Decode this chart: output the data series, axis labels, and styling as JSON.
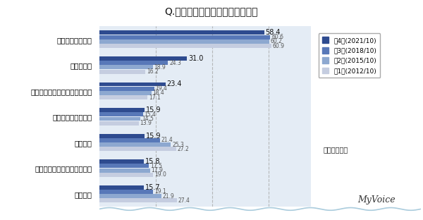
{
  "title": "Q.自分の靴をどこで買いますか？",
  "categories": [
    "靴専門チェーン店",
    "ネット通販",
    "ショッピングセンター・モール",
    "アウトレットモール",
    "デパート",
    "靴専門店（チェーン店以外）",
    "スーパー"
  ],
  "series_order": [
    "第4回(2021/10)",
    "第3回(2018/10)",
    "第2回(2015/10)",
    "第1回(2012/10)"
  ],
  "series": {
    "第4回(2021/10)": [
      58.4,
      31.0,
      23.4,
      15.9,
      15.9,
      15.8,
      15.7
    ],
    "第3回(2018/10)": [
      60.6,
      24.3,
      19.4,
      15.4,
      21.4,
      17.5,
      19.1
    ],
    "第2回(2015/10)": [
      60.2,
      18.9,
      18.4,
      14.5,
      25.3,
      17.9,
      21.9
    ],
    "第1回(2012/10)": [
      60.9,
      16.2,
      17.1,
      13.9,
      27.2,
      19.0,
      27.4
    ]
  },
  "colors": {
    "第4回(2021/10)": "#2E4B8F",
    "第3回(2018/10)": "#5878B8",
    "第2回(2015/10)": "#8DA8D0",
    "第1回(2012/10)": "#C5CDE0"
  },
  "xlim": [
    0,
    75
  ],
  "bar_height": 0.17,
  "background_color": "#FFFFFF",
  "plot_bg_color": "#E4ECF5",
  "annotation_fontsize": 6.5,
  "legend_annotation": "：靴を買う人",
  "watermark": "MyVoice",
  "grid_lines": [
    20,
    40,
    60
  ]
}
